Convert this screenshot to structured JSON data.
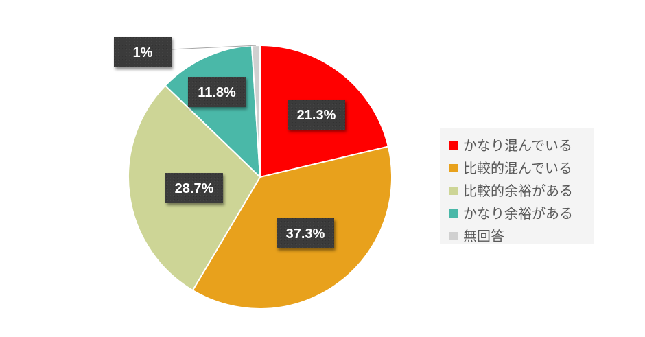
{
  "chart_data": {
    "type": "pie",
    "title": "",
    "slices": [
      {
        "label": "かなり混んでいる",
        "value": 21.3,
        "value_label": "21.3%",
        "color": "#ff0000"
      },
      {
        "label": "比較的混んでいる",
        "value": 37.3,
        "value_label": "37.3%",
        "color": "#e8a11c"
      },
      {
        "label": "比較的余裕がある",
        "value": 28.7,
        "value_label": "28.7%",
        "color": "#cdd596"
      },
      {
        "label": "かなり余裕がある",
        "value": 11.8,
        "value_label": "11.8%",
        "color": "#4ab8a8"
      },
      {
        "label": "無回答",
        "value": 1,
        "value_label": "1%",
        "color": "#d0d0d0"
      }
    ],
    "legend_position": "right",
    "data_label_style": {
      "background": "#3a3a3a",
      "text_color": "#ffffff"
    }
  }
}
